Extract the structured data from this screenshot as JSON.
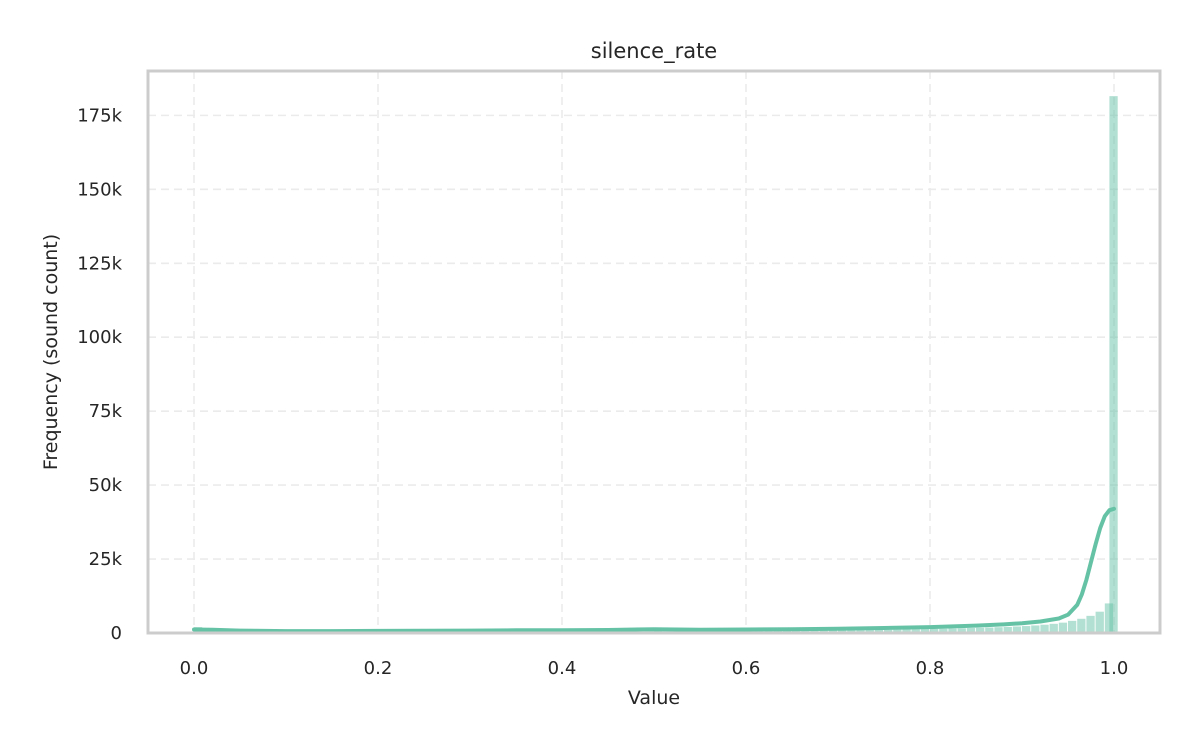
{
  "chart_data": {
    "type": "bar",
    "title": "silence_rate",
    "xlabel": "Value",
    "ylabel": "Frequency (sound count)",
    "xlim": [
      -0.05,
      1.05
    ],
    "ylim": [
      0,
      190000
    ],
    "x_ticks": [
      0.0,
      0.2,
      0.4,
      0.6,
      0.8,
      1.0
    ],
    "x_tick_labels": [
      "0.0",
      "0.2",
      "0.4",
      "0.6",
      "0.8",
      "1.0"
    ],
    "y_ticks": [
      0,
      25000,
      50000,
      75000,
      100000,
      125000,
      150000,
      175000
    ],
    "y_tick_labels": [
      "0",
      "25k",
      "50k",
      "75k",
      "100k",
      "125k",
      "150k",
      "175k"
    ],
    "grid": true,
    "color": "#66c2a5",
    "histogram": {
      "bin_width": 0.01,
      "bins_start": [
        0.0,
        0.01,
        0.02,
        0.03,
        0.04,
        0.05,
        0.06,
        0.07,
        0.08,
        0.09,
        0.1,
        0.11,
        0.12,
        0.13,
        0.14,
        0.15,
        0.16,
        0.17,
        0.18,
        0.19,
        0.2,
        0.21,
        0.22,
        0.23,
        0.24,
        0.25,
        0.26,
        0.27,
        0.28,
        0.29,
        0.3,
        0.31,
        0.32,
        0.33,
        0.34,
        0.35,
        0.36,
        0.37,
        0.38,
        0.39,
        0.4,
        0.41,
        0.42,
        0.43,
        0.44,
        0.45,
        0.46,
        0.47,
        0.48,
        0.49,
        0.5,
        0.51,
        0.52,
        0.53,
        0.54,
        0.55,
        0.56,
        0.57,
        0.58,
        0.59,
        0.6,
        0.61,
        0.62,
        0.63,
        0.64,
        0.65,
        0.66,
        0.67,
        0.68,
        0.69,
        0.7,
        0.71,
        0.72,
        0.73,
        0.74,
        0.75,
        0.76,
        0.77,
        0.78,
        0.79,
        0.8,
        0.81,
        0.82,
        0.83,
        0.84,
        0.85,
        0.86,
        0.87,
        0.88,
        0.89,
        0.9,
        0.91,
        0.92,
        0.93,
        0.94,
        0.95,
        0.96,
        0.97,
        0.98,
        0.99
      ],
      "counts": [
        2000,
        900,
        700,
        600,
        500,
        450,
        400,
        380,
        360,
        350,
        340,
        330,
        330,
        330,
        330,
        330,
        330,
        330,
        330,
        330,
        330,
        330,
        330,
        340,
        340,
        340,
        350,
        350,
        350,
        360,
        360,
        370,
        380,
        420,
        400,
        400,
        400,
        400,
        410,
        410,
        420,
        420,
        430,
        430,
        440,
        450,
        460,
        480,
        500,
        560,
        700,
        600,
        550,
        550,
        560,
        570,
        580,
        600,
        610,
        630,
        640,
        660,
        680,
        700,
        720,
        740,
        760,
        790,
        820,
        850,
        880,
        920,
        960,
        1000,
        1050,
        1100,
        1150,
        1200,
        1260,
        1320,
        1400,
        1450,
        1520,
        1600,
        1680,
        1760,
        1850,
        1950,
        2050,
        2200,
        2350,
        2550,
        2800,
        3100,
        3500,
        4100,
        4800,
        5800,
        7200,
        10000
      ],
      "final_bin_start": 0.995,
      "final_bin_count": 181500
    },
    "kde": {
      "x": [
        0.0,
        0.02,
        0.05,
        0.1,
        0.15,
        0.2,
        0.25,
        0.3,
        0.35,
        0.4,
        0.45,
        0.5,
        0.55,
        0.6,
        0.65,
        0.7,
        0.75,
        0.8,
        0.85,
        0.88,
        0.9,
        0.92,
        0.94,
        0.95,
        0.96,
        0.965,
        0.97,
        0.975,
        0.98,
        0.985,
        0.99,
        0.995,
        1.0
      ],
      "y": [
        1200,
        1100,
        800,
        650,
        650,
        700,
        750,
        800,
        900,
        900,
        1000,
        1300,
        1100,
        1200,
        1300,
        1450,
        1700,
        2000,
        2500,
        2900,
        3300,
        3900,
        4900,
        6200,
        9500,
        13000,
        18000,
        24000,
        30000,
        35500,
        39500,
        41500,
        42000
      ]
    }
  }
}
